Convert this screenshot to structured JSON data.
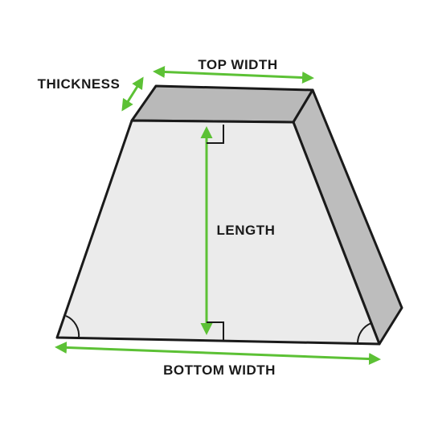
{
  "labels": {
    "top_width": "TOP WIDTH",
    "thickness": "THICKNESS",
    "length": "LENGTH",
    "bottom_width": "BOTTOM WIDTH"
  },
  "colors": {
    "front_face": "#ebebeb",
    "top_face": "#b9b9b9",
    "side_face": "#bdbdbd",
    "outline": "#1a1a1a",
    "arrow": "#5cc135",
    "label_text": "#1a1a1a",
    "background": "#ffffff"
  }
}
